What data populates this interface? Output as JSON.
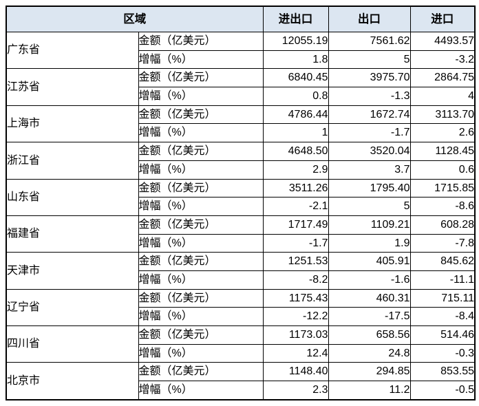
{
  "chart_data": {
    "type": "table",
    "title": "",
    "header": {
      "region_label": "区域",
      "measure_columns": [
        "进出口",
        "出口",
        "进口"
      ]
    },
    "row_labels": {
      "amount": "金额（亿美元）",
      "growth": "增幅（%）"
    },
    "rows": [
      {
        "region": "广东省",
        "amount": [
          "12055.19",
          "7561.62",
          "4493.57"
        ],
        "growth": [
          "1.8",
          "5",
          "-3.2"
        ]
      },
      {
        "region": "江苏省",
        "amount": [
          "6840.45",
          "3975.70",
          "2864.75"
        ],
        "growth": [
          "0.8",
          "-1.3",
          "4"
        ]
      },
      {
        "region": "上海市",
        "amount": [
          "4786.44",
          "1672.74",
          "3113.70"
        ],
        "growth": [
          "1",
          "-1.7",
          "2.6"
        ]
      },
      {
        "region": "浙江省",
        "amount": [
          "4648.50",
          "3520.04",
          "1128.45"
        ],
        "growth": [
          "2.9",
          "3.7",
          "0.6"
        ]
      },
      {
        "region": "山东省",
        "amount": [
          "3511.26",
          "1795.40",
          "1715.85"
        ],
        "growth": [
          "-2.1",
          "5",
          "-8.6"
        ]
      },
      {
        "region": "福建省",
        "amount": [
          "1717.49",
          "1109.21",
          "608.28"
        ],
        "growth": [
          "-1.7",
          "1.9",
          "-7.8"
        ]
      },
      {
        "region": "天津市",
        "amount": [
          "1251.53",
          "405.91",
          "845.62"
        ],
        "growth": [
          "-8.2",
          "-1.6",
          "-11.1"
        ]
      },
      {
        "region": "辽宁省",
        "amount": [
          "1175.43",
          "460.31",
          "715.11"
        ],
        "growth": [
          "-12.2",
          "-17.5",
          "-8.4"
        ]
      },
      {
        "region": "四川省",
        "amount": [
          "1173.03",
          "658.56",
          "514.46"
        ],
        "growth": [
          "12.4",
          "24.8",
          "-0.3"
        ]
      },
      {
        "region": "北京市",
        "amount": [
          "1148.40",
          "294.85",
          "853.55"
        ],
        "growth": [
          "2.3",
          "11.2",
          "-0.5"
        ]
      }
    ],
    "colors": {
      "header_bg": "#dce6f1",
      "border": "#000000",
      "text": "#000000"
    }
  }
}
